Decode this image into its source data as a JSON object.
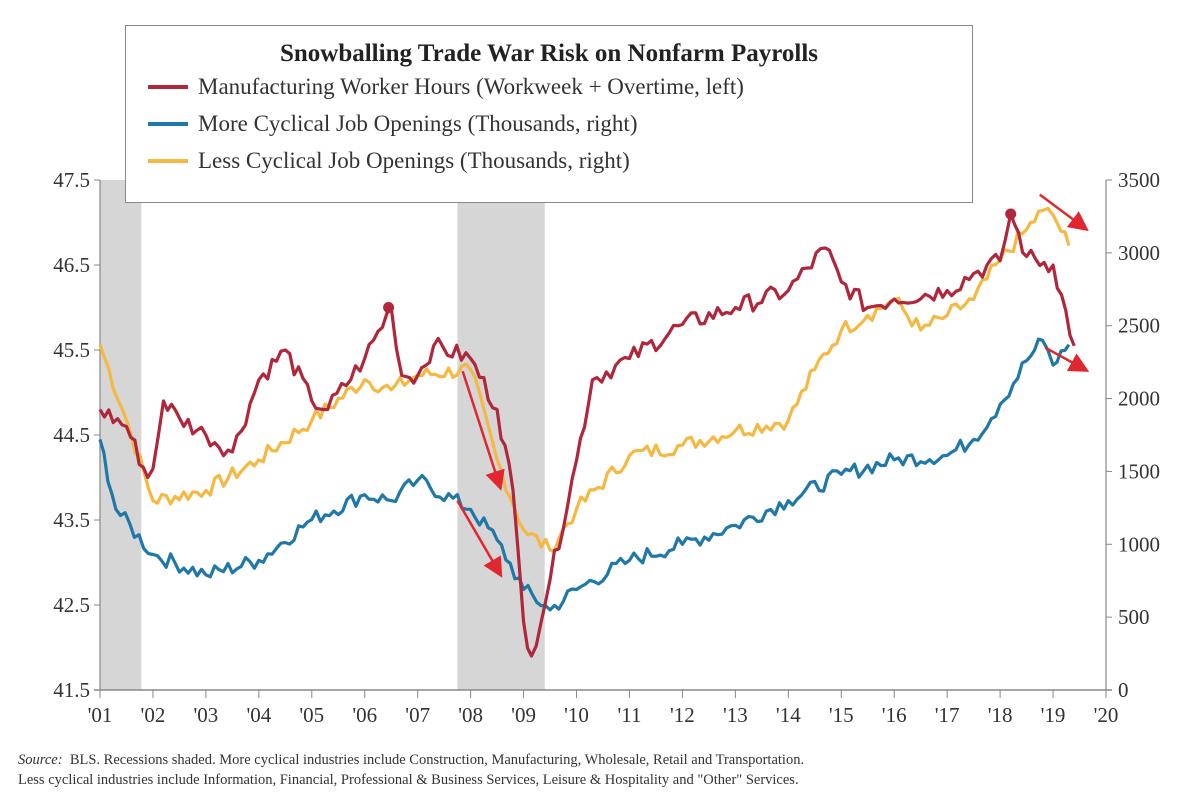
{
  "chart_data": {
    "type": "line",
    "title": "Snowballing Trade War Risk on Nonfarm Payrolls",
    "x_ticks": [
      "'01",
      "'02",
      "'03",
      "'04",
      "'05",
      "'06",
      "'07",
      "'08",
      "'09",
      "'10",
      "'11",
      "'12",
      "'13",
      "'14",
      "'15",
      "'16",
      "'17",
      "'18",
      "'19",
      "'20"
    ],
    "xlim": [
      2001,
      2020
    ],
    "y_left": {
      "ticks": [
        "41.5",
        "42.5",
        "43.5",
        "44.5",
        "45.5",
        "46.5",
        "47.5"
      ],
      "ylim": [
        41.5,
        47.5
      ]
    },
    "y_right": {
      "ticks": [
        "0",
        "500",
        "1000",
        "1500",
        "2000",
        "2500",
        "3000",
        "3500"
      ],
      "ylim": [
        0,
        3500
      ]
    },
    "recessions": [
      [
        2001.0,
        2001.78
      ],
      [
        2007.75,
        2009.4
      ]
    ],
    "series": [
      {
        "name": "Manufacturing Worker Hours (Workweek + Overtime, left)",
        "axis": "left",
        "color": "#b0273b",
        "x": [
          2001.0,
          2001.5,
          2001.9,
          2002.0,
          2002.2,
          2002.5,
          2003.0,
          2003.5,
          2004.0,
          2004.5,
          2005.0,
          2005.3,
          2006.0,
          2006.5,
          2006.7,
          2007.0,
          2007.3,
          2008.0,
          2008.5,
          2008.8,
          2009.0,
          2009.15,
          2009.5,
          2010.0,
          2010.3,
          2011.0,
          2012.0,
          2013.0,
          2014.0,
          2014.7,
          2015.0,
          2015.5,
          2016.0,
          2017.0,
          2017.5,
          2018.0,
          2018.2,
          2018.5,
          2019.0,
          2019.4
        ],
        "y": [
          44.8,
          44.6,
          44.0,
          44.1,
          44.9,
          44.7,
          44.5,
          44.3,
          45.15,
          45.5,
          44.9,
          44.8,
          45.4,
          46.0,
          45.2,
          45.2,
          45.55,
          45.4,
          44.8,
          43.85,
          42.3,
          41.9,
          42.8,
          44.2,
          45.15,
          45.4,
          45.8,
          46.0,
          46.2,
          46.7,
          46.3,
          46.0,
          46.1,
          46.2,
          46.4,
          46.55,
          47.1,
          46.6,
          46.5,
          45.55
        ],
        "markers": [
          [
            2006.45,
            46.0
          ],
          [
            2018.2,
            47.1
          ]
        ]
      },
      {
        "name": "More Cyclical Job Openings (Thousands, right)",
        "axis": "right",
        "color": "#1f78a8",
        "x": [
          2001.0,
          2001.3,
          2002.0,
          2003.0,
          2004.0,
          2005.0,
          2006.0,
          2006.5,
          2007.0,
          2008.0,
          2008.5,
          2009.0,
          2009.5,
          2010.0,
          2011.0,
          2012.0,
          2013.0,
          2014.0,
          2015.0,
          2016.0,
          2017.0,
          2017.5,
          2018.0,
          2018.5,
          2018.8,
          2019.0,
          2019.3
        ],
        "y": [
          1720,
          1240,
          930,
          790,
          890,
          1170,
          1340,
          1300,
          1440,
          1240,
          1030,
          690,
          550,
          690,
          890,
          1000,
          1130,
          1300,
          1480,
          1580,
          1610,
          1720,
          1960,
          2260,
          2400,
          2230,
          2370
        ]
      },
      {
        "name": "Less Cyclical Job Openings (Thousands, right)",
        "axis": "right",
        "color": "#f5b843",
        "x": [
          2001.0,
          2001.5,
          2002.0,
          2003.0,
          2004.0,
          2005.0,
          2006.0,
          2006.5,
          2007.0,
          2008.0,
          2008.5,
          2009.0,
          2009.5,
          2010.0,
          2011.0,
          2012.0,
          2013.0,
          2014.0,
          2014.5,
          2015.0,
          2015.5,
          2016.0,
          2016.5,
          2017.0,
          2017.5,
          2018.0,
          2018.5,
          2018.8,
          2019.0,
          2019.3
        ],
        "y": [
          2370,
          1850,
          1300,
          1370,
          1580,
          1850,
          2130,
          2060,
          2160,
          2200,
          1580,
          1100,
          960,
          1240,
          1610,
          1680,
          1780,
          1850,
          2200,
          2470,
          2570,
          2680,
          2470,
          2570,
          2680,
          2950,
          3160,
          3290,
          3260,
          3050
        ]
      }
    ],
    "annotations": {
      "arrows": [
        {
          "axis": "left",
          "from": [
            2007.85,
            45.25
          ],
          "to": [
            2008.55,
            43.9
          ]
        },
        {
          "axis": "right",
          "from": [
            2007.75,
            1300
          ],
          "to": [
            2008.55,
            800
          ]
        },
        {
          "axis": "right",
          "from": [
            2018.75,
            3400
          ],
          "to": [
            2019.6,
            3170
          ]
        },
        {
          "axis": "right",
          "from": [
            2018.85,
            2350
          ],
          "to": [
            2019.6,
            2200
          ]
        }
      ],
      "arrow_color": "#e0262e"
    },
    "legend": "top-center"
  },
  "footnote": {
    "source_label": "Source:",
    "line1": "BLS. Recessions shaded. More cyclical industries include Construction, Manufacturing, Wholesale, Retail and Transportation.",
    "line2": "Less cyclical industries include Information, Financial, Professional & Business Services, Leisure & Hospitality and \"Other\" Services."
  }
}
